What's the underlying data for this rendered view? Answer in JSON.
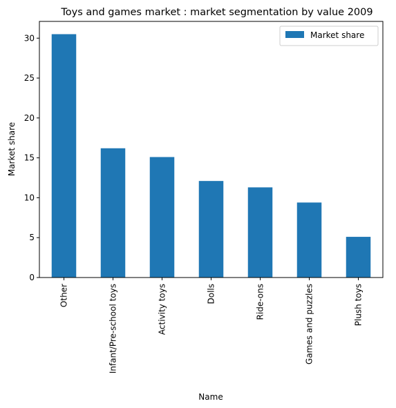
{
  "chart_data": {
    "type": "bar",
    "title": "Toys and games market : market segmentation by value 2009",
    "xlabel": "Name",
    "ylabel": "Market share",
    "categories": [
      "Other",
      "Infant/Pre-school toys",
      "Activity toys",
      "Dolls",
      "Ride-ons",
      "Games and puzzles",
      "Plush toys"
    ],
    "series": [
      {
        "name": "Market share",
        "values": [
          30.5,
          16.2,
          15.1,
          12.1,
          11.3,
          9.4,
          5.1
        ],
        "color": "#1f77b4"
      }
    ],
    "ylim": [
      0,
      32.1
    ],
    "yticks": [
      0,
      5,
      10,
      15,
      20,
      25,
      30
    ],
    "grid": false,
    "legend": "top-right"
  }
}
